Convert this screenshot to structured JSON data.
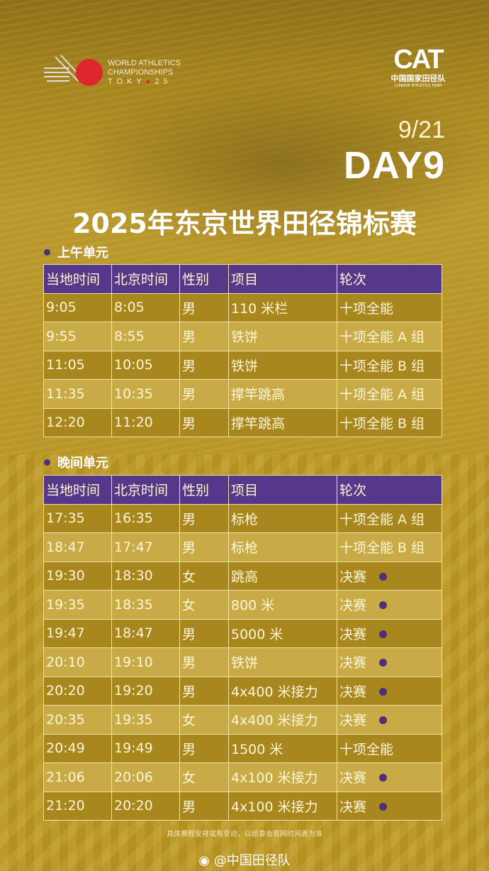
{
  "header": {
    "wa_logo": {
      "line1": "WORLD ATHLETICS",
      "line2": "CHAMPIONSHIPS",
      "line3": "TOKY",
      "line3_end": "25"
    },
    "cat_logo": {
      "mark": "CAT",
      "cn": "中国国家田径队",
      "en": "CHINESE ATHLETICS TEAM"
    },
    "date": "9/21",
    "day": "DAY9",
    "title": "2025年东京世界田径锦标赛"
  },
  "colors": {
    "header_bg": "#55388a",
    "row_dark": "#a9871f",
    "row_light": "#c8ab47",
    "marker": "#4d2f7e",
    "background": "#b38f24"
  },
  "columns": [
    "当地时间",
    "北京时间",
    "性别",
    "项目",
    "轮次"
  ],
  "morning": {
    "label": "上午单元",
    "rows": [
      {
        "cells": [
          "9:05",
          "8:05",
          "男",
          "110 米栏",
          "十项全能"
        ],
        "marked": false
      },
      {
        "cells": [
          "9:55",
          "8:55",
          "男",
          "铁饼",
          "十项全能 A 组"
        ],
        "marked": false
      },
      {
        "cells": [
          "11:05",
          "10:05",
          "男",
          "铁饼",
          "十项全能 B 组"
        ],
        "marked": false
      },
      {
        "cells": [
          "11:35",
          "10:35",
          "男",
          "撑竿跳高",
          "十项全能 A 组"
        ],
        "marked": false
      },
      {
        "cells": [
          "12:20",
          "11:20",
          "男",
          "撑竿跳高",
          "十项全能 B 组"
        ],
        "marked": false
      }
    ]
  },
  "evening": {
    "label": "晚间单元",
    "rows": [
      {
        "cells": [
          "17:35",
          "16:35",
          "男",
          "标枪",
          "十项全能 A 组"
        ],
        "marked": false
      },
      {
        "cells": [
          "18:47",
          "17:47",
          "男",
          "标枪",
          "十项全能 B 组"
        ],
        "marked": false
      },
      {
        "cells": [
          "19:30",
          "18:30",
          "女",
          "跳高",
          "决赛"
        ],
        "marked": true
      },
      {
        "cells": [
          "19:35",
          "18:35",
          "女",
          "800 米",
          "决赛"
        ],
        "marked": true
      },
      {
        "cells": [
          "19:47",
          "18:47",
          "男",
          "5000 米",
          "决赛"
        ],
        "marked": true
      },
      {
        "cells": [
          "20:10",
          "19:10",
          "男",
          "铁饼",
          "决赛"
        ],
        "marked": true
      },
      {
        "cells": [
          "20:20",
          "19:20",
          "男",
          "4x400 米接力",
          "决赛"
        ],
        "marked": true
      },
      {
        "cells": [
          "20:35",
          "19:35",
          "女",
          "4x400 米接力",
          "决赛"
        ],
        "marked": true
      },
      {
        "cells": [
          "20:49",
          "19:49",
          "男",
          "1500 米",
          "十项全能"
        ],
        "marked": false
      },
      {
        "cells": [
          "21:06",
          "20:06",
          "女",
          "4x100 米接力",
          "决赛"
        ],
        "marked": true
      },
      {
        "cells": [
          "21:20",
          "20:20",
          "男",
          "4x100 米接力",
          "决赛"
        ],
        "marked": true
      }
    ]
  },
  "footer": {
    "note": "具体赛程安排或有变动，以组委会官网时间表为准",
    "weibo_handle": "@中国田径队",
    "weibo_icon": "weibo-icon"
  }
}
